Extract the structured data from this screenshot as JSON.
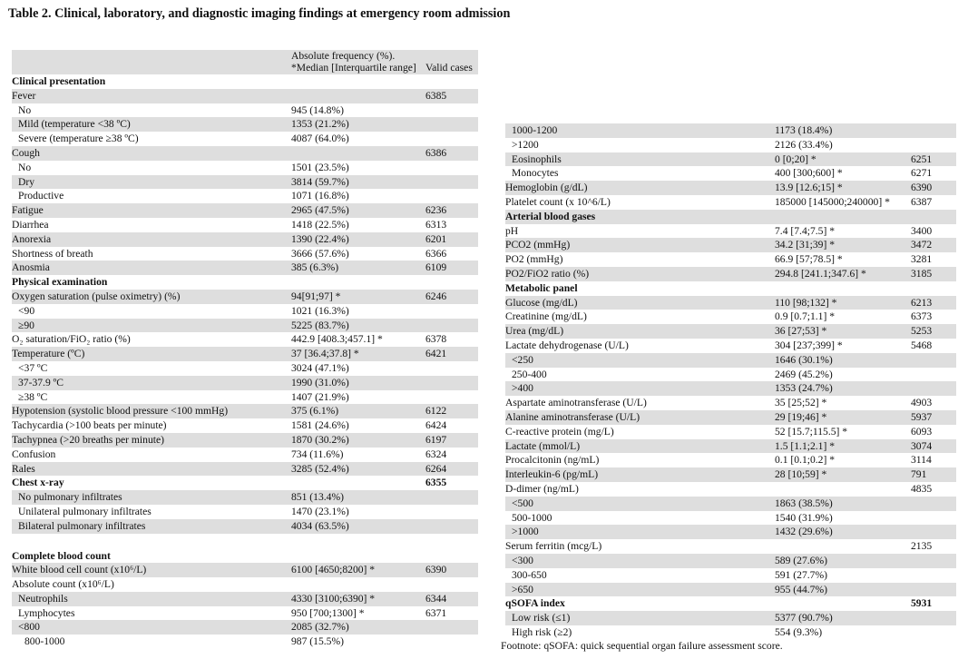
{
  "title": "Table 2. Clinical, laboratory, and diagnostic imaging findings at emergency room admission",
  "header": {
    "col2": "Absolute frequency (%). *Median [Interquartile range]",
    "col3": "Valid cases"
  },
  "left_rows": [
    {
      "label": "Clinical presentation",
      "value": "",
      "cases": "",
      "section": true,
      "shade": false,
      "indent": 0
    },
    {
      "label": "Fever",
      "value": "",
      "cases": "6385",
      "shade": true,
      "indent": 0
    },
    {
      "label": "No",
      "value": "945 (14.8%)",
      "cases": "",
      "shade": false,
      "indent": 1
    },
    {
      "label": "Mild (temperature <38 ºC)",
      "value": "1353 (21.2%)",
      "cases": "",
      "shade": true,
      "indent": 1
    },
    {
      "label": "Severe (temperature ≥38 ºC)",
      "value": "4087 (64.0%)",
      "cases": "",
      "shade": false,
      "indent": 1
    },
    {
      "label": "Cough",
      "value": "",
      "cases": "6386",
      "shade": true,
      "indent": 0
    },
    {
      "label": "No",
      "value": "1501 (23.5%)",
      "cases": "",
      "shade": false,
      "indent": 1
    },
    {
      "label": "Dry",
      "value": "3814 (59.7%)",
      "cases": "",
      "shade": true,
      "indent": 1
    },
    {
      "label": "Productive",
      "value": "1071 (16.8%)",
      "cases": "",
      "shade": false,
      "indent": 1
    },
    {
      "label": "Fatigue",
      "value": "2965 (47.5%)",
      "cases": "6236",
      "shade": true,
      "indent": 0
    },
    {
      "label": "Diarrhea",
      "value": "1418 (22.5%)",
      "cases": "6313",
      "shade": false,
      "indent": 0
    },
    {
      "label": "Anorexia",
      "value": "1390 (22.4%)",
      "cases": "6201",
      "shade": true,
      "indent": 0
    },
    {
      "label": "Shortness of breath",
      "value": "3666 (57.6%)",
      "cases": "6366",
      "shade": false,
      "indent": 0
    },
    {
      "label": "Anosmia",
      "value": "385 (6.3%)",
      "cases": "6109",
      "shade": true,
      "indent": 0
    },
    {
      "label": "Physical examination",
      "value": "",
      "cases": "",
      "section": true,
      "shade": false,
      "indent": 0
    },
    {
      "label": "Oxygen saturation (pulse oximetry) (%)",
      "value": "94[91;97] *",
      "cases": "6246",
      "shade": true,
      "indent": 0
    },
    {
      "label": "<90",
      "value": "1021 (16.3%)",
      "cases": "",
      "shade": false,
      "indent": 1
    },
    {
      "label": "≥90",
      "value": "5225 (83.7%)",
      "cases": "",
      "shade": true,
      "indent": 1
    },
    {
      "label": "O₂ saturation/FiO₂ ratio (%)",
      "value": "442.9 [408.3;457.1] *",
      "cases": "6378",
      "shade": false,
      "indent": 0
    },
    {
      "label": "Temperature (ºC)",
      "value": "37 [36.4;37.8] *",
      "cases": "6421",
      "shade": true,
      "indent": 0
    },
    {
      "label": "<37 ºC",
      "value": "3024 (47.1%)",
      "cases": "",
      "shade": false,
      "indent": 1
    },
    {
      "label": "37-37.9 ºC",
      "value": "1990 (31.0%)",
      "cases": "",
      "shade": true,
      "indent": 1
    },
    {
      "label": "≥38 ºC",
      "value": "1407 (21.9%)",
      "cases": "",
      "shade": false,
      "indent": 1
    },
    {
      "label": "Hypotension (systolic blood pressure <100 mmHg)",
      "value": "375 (6.1%)",
      "cases": "6122",
      "shade": true,
      "indent": 0
    },
    {
      "label": "Tachycardia (>100 beats per minute)",
      "value": "1581 (24.6%)",
      "cases": "6424",
      "shade": false,
      "indent": 0
    },
    {
      "label": "Tachypnea (>20 breaths per minute)",
      "value": "1870 (30.2%)",
      "cases": "6197",
      "shade": true,
      "indent": 0
    },
    {
      "label": "Confusion",
      "value": "734 (11.6%)",
      "cases": "6324",
      "shade": false,
      "indent": 0
    },
    {
      "label": "Rales",
      "value": "3285 (52.4%)",
      "cases": "6264",
      "shade": true,
      "indent": 0
    },
    {
      "label": "Chest x-ray",
      "value": "",
      "cases": "6355",
      "section": true,
      "shade": false,
      "indent": 0
    },
    {
      "label": "No pulmonary infiltrates",
      "value": "851 (13.4%)",
      "cases": "",
      "shade": true,
      "indent": 1
    },
    {
      "label": "Unilateral pulmonary infiltrates",
      "value": "1470 (23.1%)",
      "cases": "",
      "shade": false,
      "indent": 1
    },
    {
      "label": "Bilateral pulmonary infiltrates",
      "value": "4034 (63.5%)",
      "cases": "",
      "shade": true,
      "indent": 1
    },
    {
      "label": "",
      "value": "",
      "cases": "",
      "spacer": true,
      "shade": false,
      "indent": 0
    },
    {
      "label": "Complete blood count",
      "value": "",
      "cases": "",
      "section": true,
      "shade": false,
      "indent": 0
    },
    {
      "label": "White blood cell count (x10⁶/L)",
      "value": "6100 [4650;8200] *",
      "cases": "6390",
      "shade": true,
      "indent": 0
    },
    {
      "label": "Absolute count (x10⁶/L)",
      "value": "",
      "cases": "",
      "shade": false,
      "indent": 0
    },
    {
      "label": "Neutrophils",
      "value": "4330 [3100;6390] *",
      "cases": "6344",
      "shade": true,
      "indent": 1
    },
    {
      "label": "Lymphocytes",
      "value": "950 [700;1300] *",
      "cases": "6371",
      "shade": false,
      "indent": 1
    },
    {
      "label": "<800",
      "value": "2085 (32.7%)",
      "cases": "",
      "shade": true,
      "indent": 1
    },
    {
      "label": "800-1000",
      "value": "987 (15.5%)",
      "cases": "",
      "shade": false,
      "indent": 2
    }
  ],
  "right_rows": [
    {
      "label": "1000-1200",
      "value": "1173 (18.4%)",
      "cases": "",
      "shade": true,
      "indent": 1
    },
    {
      "label": ">1200",
      "value": "2126 (33.4%)",
      "cases": "",
      "shade": false,
      "indent": 1
    },
    {
      "label": "Eosinophils",
      "value": "0 [0;20] *",
      "cases": "6251",
      "shade": true,
      "indent": 1
    },
    {
      "label": "Monocytes",
      "value": "400 [300;600] *",
      "cases": "6271",
      "shade": false,
      "indent": 1
    },
    {
      "label": "Hemoglobin (g/dL)",
      "value": "13.9 [12.6;15] *",
      "cases": "6390",
      "shade": true,
      "indent": 0
    },
    {
      "label": "Platelet count (x 10^6/L)",
      "value": "185000 [145000;240000] *",
      "cases": "6387",
      "shade": false,
      "indent": 0
    },
    {
      "label": "Arterial blood gases",
      "value": "",
      "cases": "",
      "section": true,
      "shade": true,
      "indent": 0
    },
    {
      "label": "pH",
      "value": "7.4 [7.4;7.5] *",
      "cases": "3400",
      "shade": false,
      "indent": 0
    },
    {
      "label": "PCO2 (mmHg)",
      "value": "34.2 [31;39] *",
      "cases": "3472",
      "shade": true,
      "indent": 0
    },
    {
      "label": "PO2 (mmHg)",
      "value": "66.9 [57;78.5] *",
      "cases": "3281",
      "shade": false,
      "indent": 0
    },
    {
      "label": "PO2/FiO2 ratio (%)",
      "value": "294.8 [241.1;347.6] *",
      "cases": "3185",
      "shade": true,
      "indent": 0
    },
    {
      "label": "Metabolic panel",
      "value": "",
      "cases": "",
      "section": true,
      "shade": false,
      "indent": 0
    },
    {
      "label": "Glucose (mg/dL)",
      "value": "110 [98;132] *",
      "cases": "6213",
      "shade": true,
      "indent": 0
    },
    {
      "label": "Creatinine (mg/dL)",
      "value": "0.9 [0.7;1.1] *",
      "cases": "6373",
      "shade": false,
      "indent": 0
    },
    {
      "label": "Urea (mg/dL)",
      "value": "36 [27;53] *",
      "cases": "5253",
      "shade": true,
      "indent": 0
    },
    {
      "label": "Lactate dehydrogenase (U/L)",
      "value": "304 [237;399] *",
      "cases": "5468",
      "shade": false,
      "indent": 0
    },
    {
      "label": "<250",
      "value": "1646 (30.1%)",
      "cases": "",
      "shade": true,
      "indent": 1
    },
    {
      "label": "250-400",
      "value": "2469 (45.2%)",
      "cases": "",
      "shade": false,
      "indent": 1
    },
    {
      "label": ">400",
      "value": "1353 (24.7%)",
      "cases": "",
      "shade": true,
      "indent": 1
    },
    {
      "label": "Aspartate aminotransferase (U/L)",
      "value": "35 [25;52] *",
      "cases": "4903",
      "shade": false,
      "indent": 0
    },
    {
      "label": "Alanine aminotransferase (U/L)",
      "value": "29 [19;46] *",
      "cases": "5937",
      "shade": true,
      "indent": 0
    },
    {
      "label": "C-reactive protein (mg/L)",
      "value": "52 [15.7;115.5] *",
      "cases": "6093",
      "shade": false,
      "indent": 0
    },
    {
      "label": "Lactate (mmol/L)",
      "value": "1.5 [1.1;2.1] *",
      "cases": "3074",
      "shade": true,
      "indent": 0
    },
    {
      "label": "Procalcitonin (ng/mL)",
      "value": "0.1 [0.1;0.2] *",
      "cases": "3114",
      "shade": false,
      "indent": 0
    },
    {
      "label": "Interleukin-6 (pg/mL)",
      "value": "28 [10;59] *",
      "cases": "791",
      "shade": true,
      "indent": 0
    },
    {
      "label": "D-dimer (ng/mL)",
      "value": "",
      "cases": "4835",
      "shade": false,
      "indent": 0
    },
    {
      "label": "<500",
      "value": "1863 (38.5%)",
      "cases": "",
      "shade": true,
      "indent": 1
    },
    {
      "label": "500-1000",
      "value": "1540 (31.9%)",
      "cases": "",
      "shade": false,
      "indent": 1
    },
    {
      "label": ">1000",
      "value": "1432 (29.6%)",
      "cases": "",
      "shade": true,
      "indent": 1
    },
    {
      "label": "Serum ferritin (mcg/L)",
      "value": "",
      "cases": "2135",
      "shade": false,
      "indent": 0
    },
    {
      "label": "<300",
      "value": "589 (27.6%)",
      "cases": "",
      "shade": true,
      "indent": 1
    },
    {
      "label": "300-650",
      "value": "591 (27.7%)",
      "cases": "",
      "shade": false,
      "indent": 1
    },
    {
      "label": ">650",
      "value": "955 (44.7%)",
      "cases": "",
      "shade": true,
      "indent": 1
    },
    {
      "label": "qSOFA index",
      "value": "",
      "cases": "5931",
      "section": true,
      "shade": false,
      "indent": 0
    },
    {
      "label": "Low risk (≤1)",
      "value": "5377 (90.7%)",
      "cases": "",
      "shade": true,
      "indent": 1
    },
    {
      "label": "High risk (≥2)",
      "value": "554 (9.3%)",
      "cases": "",
      "shade": false,
      "indent": 1
    }
  ],
  "footnote": "Footnote: qSOFA: quick sequential organ failure assessment score."
}
